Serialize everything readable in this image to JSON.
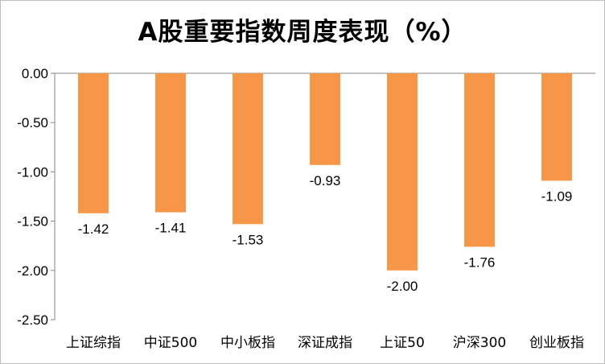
{
  "chart_data": {
    "type": "bar",
    "title": "A股重要指数周度表现（%）",
    "categories": [
      "上证综指",
      "中证500",
      "中小板指",
      "深证成指",
      "上证50",
      "沪深300",
      "创业板指"
    ],
    "values": [
      -1.42,
      -1.41,
      -1.53,
      -0.93,
      -2.0,
      -1.76,
      -1.09
    ],
    "data_labels": [
      "-1.42",
      "-1.41",
      "-1.53",
      "-0.93",
      "-2.00",
      "-1.76",
      "-1.09"
    ],
    "y_ticks": [
      0,
      -0.5,
      -1.0,
      -1.5,
      -2.0,
      -2.5
    ],
    "y_tick_labels": [
      "0.00",
      "-0.50",
      "-1.00",
      "-1.50",
      "-2.00",
      "-2.50"
    ],
    "ylim": [
      -2.5,
      0
    ],
    "xlabel": "",
    "ylabel": "",
    "grid": false,
    "legend": "none",
    "bar_color": "#F79646",
    "axis_color": "#868686"
  }
}
